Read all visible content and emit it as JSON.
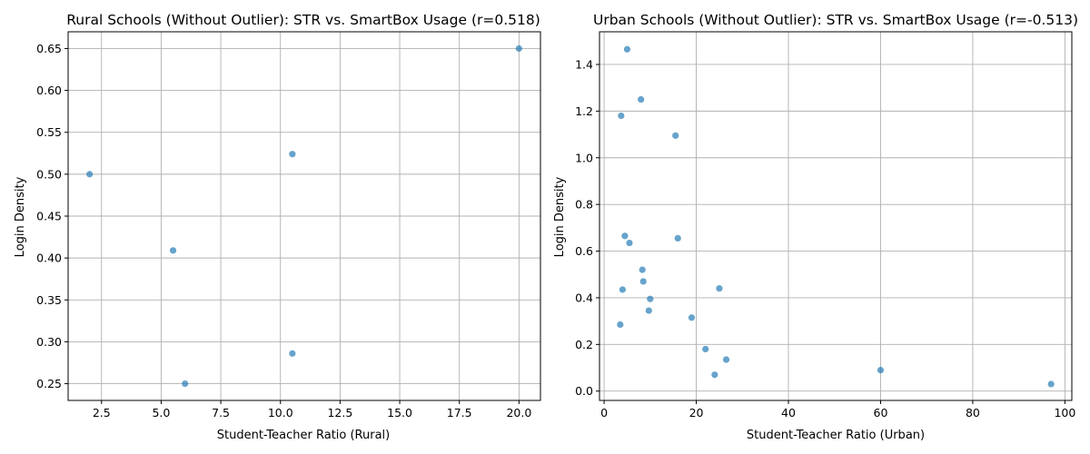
{
  "chart_data": [
    {
      "type": "scatter",
      "title": "Rural Schools (Without Outlier): STR vs. SmartBox Usage (r=0.518)",
      "xlabel": "Student-Teacher Ratio (Rural)",
      "ylabel": "Login Density",
      "xlim": [
        1.1,
        20.9
      ],
      "ylim": [
        0.23,
        0.67
      ],
      "xticks": [
        2.5,
        5.0,
        7.5,
        10.0,
        12.5,
        15.0,
        17.5,
        20.0
      ],
      "xtick_labels": [
        "2.5",
        "5.0",
        "7.5",
        "10.0",
        "12.5",
        "15.0",
        "17.5",
        "20.0"
      ],
      "yticks": [
        0.25,
        0.3,
        0.35,
        0.4,
        0.45,
        0.5,
        0.55,
        0.6,
        0.65
      ],
      "ytick_labels": [
        "0.25",
        "0.30",
        "0.35",
        "0.40",
        "0.45",
        "0.50",
        "0.55",
        "0.60",
        "0.65"
      ],
      "grid": true,
      "color": "#1f77b4",
      "points": [
        {
          "x": 2.0,
          "y": 0.5
        },
        {
          "x": 5.5,
          "y": 0.409
        },
        {
          "x": 6.0,
          "y": 0.25
        },
        {
          "x": 10.5,
          "y": 0.524
        },
        {
          "x": 10.5,
          "y": 0.286
        },
        {
          "x": 20.0,
          "y": 0.65
        }
      ]
    },
    {
      "type": "scatter",
      "title": "Urban Schools (Without Outlier): STR vs. SmartBox Usage (r=-0.513)",
      "xlabel": "Student-Teacher Ratio (Urban)",
      "ylabel": "Login Density",
      "xlim": [
        -1.0,
        101.5
      ],
      "ylim": [
        -0.04,
        1.54
      ],
      "xticks": [
        0,
        20,
        40,
        60,
        80,
        100
      ],
      "xtick_labels": [
        "0",
        "20",
        "40",
        "60",
        "80",
        "100"
      ],
      "yticks": [
        0.0,
        0.2,
        0.4,
        0.6,
        0.8,
        1.0,
        1.2,
        1.4
      ],
      "ytick_labels": [
        "0.0",
        "0.2",
        "0.4",
        "0.6",
        "0.8",
        "1.0",
        "1.2",
        "1.4"
      ],
      "grid": true,
      "color": "#1f77b4",
      "points": [
        {
          "x": 5.0,
          "y": 1.465
        },
        {
          "x": 8.0,
          "y": 1.25
        },
        {
          "x": 3.7,
          "y": 1.18
        },
        {
          "x": 15.5,
          "y": 1.095
        },
        {
          "x": 4.5,
          "y": 0.665
        },
        {
          "x": 5.5,
          "y": 0.635
        },
        {
          "x": 16.0,
          "y": 0.655
        },
        {
          "x": 8.3,
          "y": 0.52
        },
        {
          "x": 8.5,
          "y": 0.47
        },
        {
          "x": 4.0,
          "y": 0.435
        },
        {
          "x": 10.0,
          "y": 0.395
        },
        {
          "x": 25.0,
          "y": 0.44
        },
        {
          "x": 9.7,
          "y": 0.345
        },
        {
          "x": 19.0,
          "y": 0.315
        },
        {
          "x": 3.5,
          "y": 0.285
        },
        {
          "x": 22.0,
          "y": 0.18
        },
        {
          "x": 26.5,
          "y": 0.135
        },
        {
          "x": 24.0,
          "y": 0.07
        },
        {
          "x": 60.0,
          "y": 0.09
        },
        {
          "x": 97.0,
          "y": 0.03
        }
      ]
    }
  ]
}
